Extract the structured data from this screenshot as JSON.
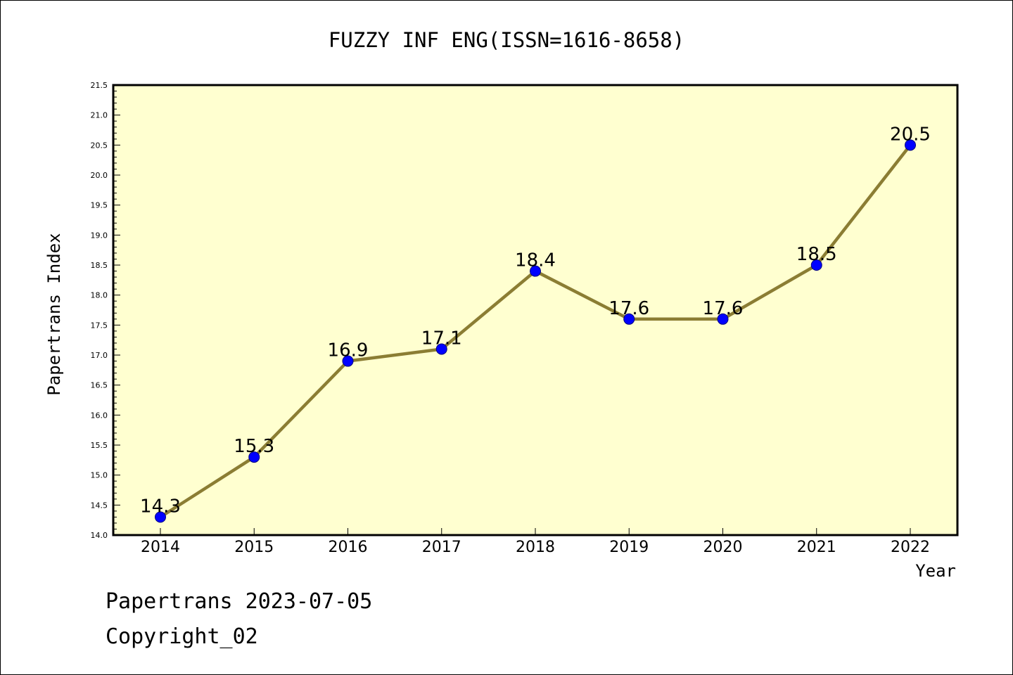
{
  "chart_data": {
    "type": "line",
    "title": "FUZZY INF ENG(ISSN=1616-8658)",
    "xlabel": "Year",
    "ylabel": "Papertrans Index",
    "categories": [
      "2014",
      "2015",
      "2016",
      "2017",
      "2018",
      "2019",
      "2020",
      "2021",
      "2022"
    ],
    "series": [
      {
        "values": [
          14.3,
          15.3,
          16.9,
          17.1,
          18.4,
          17.6,
          17.6,
          18.5,
          20.5
        ]
      }
    ],
    "data_labels": [
      "14.3",
      "15.3",
      "16.9",
      "17.1",
      "18.4",
      "17.6",
      "17.6",
      "18.5",
      "20.5"
    ],
    "ylim": [
      14.0,
      21.5
    ],
    "yticks": [
      "14.0",
      "14.5",
      "15.0",
      "15.5",
      "16.0",
      "16.5",
      "17.0",
      "17.5",
      "18.0",
      "18.5",
      "19.0",
      "19.5",
      "20.0",
      "20.5",
      "21.0",
      "21.5"
    ],
    "grid": false,
    "legend": "none",
    "colors": {
      "plot_background": "#ffffd0",
      "line": "#8b7d33",
      "marker_fill": "#0000ff",
      "marker_edge": "#000080"
    }
  },
  "footer": {
    "line1": "Papertrans 2023-07-05",
    "line2": "Copyright_02"
  }
}
